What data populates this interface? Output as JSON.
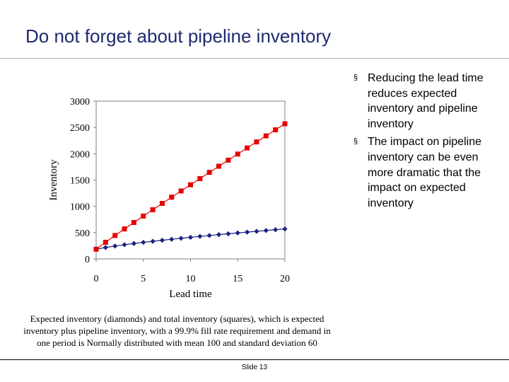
{
  "slide": {
    "title": "Do not forget about pipeline inventory",
    "bullets": [
      "Reducing the lead time reduces expected inventory and pipeline inventory",
      "The impact on pipeline inventory can be even more dramatic that the impact on expected inventory"
    ],
    "bullet_marker": "§",
    "caption": "Expected inventory (diamonds) and total inventory (squares), which is expected inventory plus pipeline inventory, with a 99.9% fill rate requirement and demand in one period is Normally distributed with mean 100 and standard deviation 60",
    "slide_number": "Slide 13"
  },
  "chart_data": {
    "type": "line",
    "title": "",
    "xlabel": "Lead time",
    "ylabel": "Inventory",
    "xlim": [
      0,
      20
    ],
    "ylim": [
      0,
      3000
    ],
    "xticks": [
      0,
      5,
      10,
      15,
      20
    ],
    "yticks": [
      0,
      500,
      1000,
      1500,
      2000,
      2500,
      3000
    ],
    "x": [
      0,
      1,
      2,
      3,
      4,
      5,
      6,
      7,
      8,
      9,
      10,
      11,
      12,
      13,
      14,
      15,
      16,
      17,
      18,
      19,
      20
    ],
    "series": [
      {
        "name": "Expected inventory",
        "marker": "diamond",
        "color": "#1a237e",
        "values": [
          185,
          217,
          245,
          270,
          293,
          315,
          335,
          355,
          374,
          392,
          410,
          428,
          445,
          462,
          478,
          494,
          510,
          525,
          540,
          555,
          570
        ]
      },
      {
        "name": "Total inventory",
        "marker": "square",
        "color": "#e60000",
        "values": [
          185,
          317,
          445,
          570,
          693,
          815,
          935,
          1055,
          1174,
          1292,
          1410,
          1528,
          1645,
          1762,
          1878,
          1994,
          2110,
          2225,
          2340,
          2455,
          2570
        ]
      }
    ]
  }
}
